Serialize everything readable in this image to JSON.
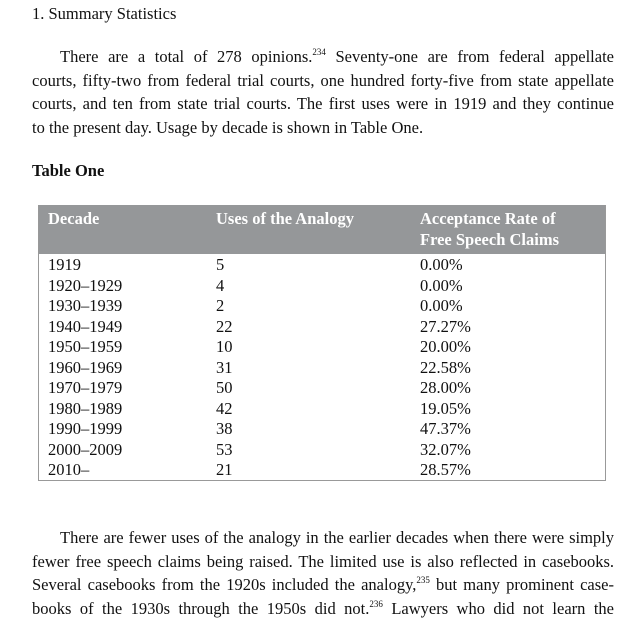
{
  "heading": "1. Summary Statistics",
  "para1": {
    "lines": [
      {
        "pre": "There are a total of 278 opinions.",
        "fn": "234",
        "post": " Seventy-one are from federal appellate"
      },
      {
        "pre": "courts, fifty-two from federal trial courts, one hundred forty-five from state appellate"
      },
      {
        "pre": "courts, and ten from state trial courts. The first uses were in 1919 and they continue"
      },
      {
        "pre": "to the present day. Usage by decade is shown in Table One."
      }
    ]
  },
  "table": {
    "title": "Table One",
    "header_color": "#959799",
    "columns": [
      "Decade",
      "Uses of the Analogy",
      "Acceptance Rate of",
      "Free Speech Claims"
    ],
    "rows": [
      [
        "1919",
        "5",
        "0.00%"
      ],
      [
        "1920–1929",
        "4",
        "0.00%"
      ],
      [
        "1930–1939",
        "2",
        "0.00%"
      ],
      [
        "1940–1949",
        "22",
        "27.27%"
      ],
      [
        "1950–1959",
        "10",
        "20.00%"
      ],
      [
        "1960–1969",
        "31",
        "22.58%"
      ],
      [
        "1970–1979",
        "50",
        "28.00%"
      ],
      [
        "1980–1989",
        "42",
        "19.05%"
      ],
      [
        "1990–1999",
        "38",
        "47.37%"
      ],
      [
        "2000–2009",
        "53",
        "32.07%"
      ],
      [
        "2010–",
        "21",
        "28.57%"
      ]
    ]
  },
  "para2": {
    "lines": [
      {
        "pre": "There are fewer uses of the analogy in the earlier decades when there were simply"
      },
      {
        "pre": "fewer free speech claims being raised. The limited use is also reflected in casebooks."
      },
      {
        "pre": "Several casebooks from the 1920s included the analogy,",
        "fn": "235",
        "post": " but many prominent case-"
      },
      {
        "pre": "books of the 1930s through the 1950s did not.",
        "fn": "236",
        "post": " Lawyers who did not learn the"
      }
    ]
  }
}
